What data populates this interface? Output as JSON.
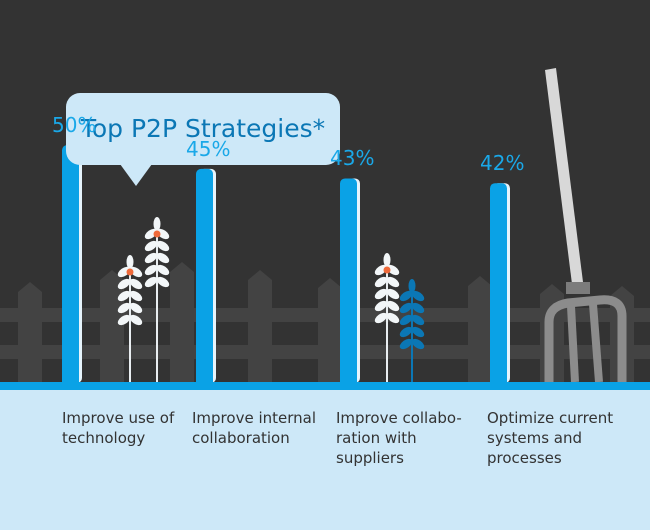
{
  "title": "Top P2P Strategies*",
  "colors": {
    "background": "#333333",
    "bar": "#0aa2e6",
    "bar_shadow": "#e6f4fc",
    "ground": "#cde8f8",
    "value_text": "#1aa8e8",
    "bubble_text": "#0b77b5",
    "label_text": "#333333"
  },
  "decorations": [
    "fence",
    "wheat-stalks",
    "pitchfork"
  ],
  "chart_data": {
    "type": "bar",
    "title": "Top P2P Strategies*",
    "categories": [
      "Improve use of\ntechnology",
      "Improve internal\ncollaboration",
      "Improve collabo-\nration with\nsuppliers",
      "Optimize current\nsystems and\nprocesses"
    ],
    "values": [
      50,
      45,
      43,
      42
    ],
    "value_labels": [
      "50%",
      "45%",
      "43%",
      "42%"
    ],
    "ylim": [
      0,
      70
    ],
    "grid": false,
    "legend": "none"
  }
}
